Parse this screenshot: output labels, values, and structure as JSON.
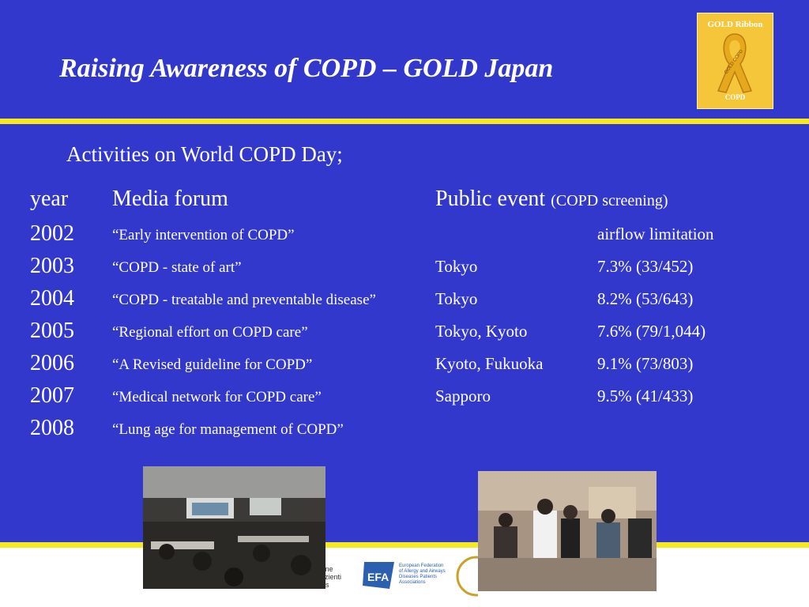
{
  "slide": {
    "title": "Raising Awareness of COPD – GOLD Japan",
    "subtitle": "Activities on World COPD Day;",
    "logo": {
      "top_text": "GOLD Ribbon",
      "ribbon_text": "GOLD COPD",
      "bottom_text": "COPD"
    },
    "colors": {
      "background": "#3338cc",
      "rule": "#f4ea1f",
      "logo_bg": "#f6c63a"
    }
  },
  "table": {
    "header": {
      "year": "year",
      "media": "Media forum",
      "place": "Public event",
      "place_note": "(COPD screening)"
    },
    "rows": [
      {
        "year": "2002",
        "media": "“Early intervention of COPD”",
        "place": "",
        "rate": "airflow limitation"
      },
      {
        "year": "2003",
        "media": "“COPD - state of art”",
        "place": "Tokyo",
        "rate": "7.3% (33/452)"
      },
      {
        "year": "2004",
        "media": "“COPD - treatable and preventable disease”",
        "place": "Tokyo",
        "rate": "8.2% (53/643)"
      },
      {
        "year": "2005",
        "media": "“Regional effort on COPD care”",
        "place": "Tokyo, Kyoto",
        "rate": "7.6% (79/1,044)"
      },
      {
        "year": "2006",
        "media": "“A Revised guideline for COPD”",
        "place": "Kyoto, Fukuoka",
        "rate": "9.1% (73/803)"
      },
      {
        "year": "2007",
        "media": "“Medical network for COPD care”",
        "place": "Sapporo",
        "rate": "9.5% (41/433)"
      },
      {
        "year": "2008",
        "media": "“Lung age for management of COPD”",
        "place": "",
        "rate": ""
      }
    ]
  },
  "photos": {
    "left": "media-forum-photo",
    "right": "public-event-photo"
  },
  "partners": {
    "logo1_text": "zione Pazienti nlus",
    "logo2_text": "EFA",
    "logo2_caption": "European Federation of Allergy and Airways Diseases Patients Associations"
  }
}
